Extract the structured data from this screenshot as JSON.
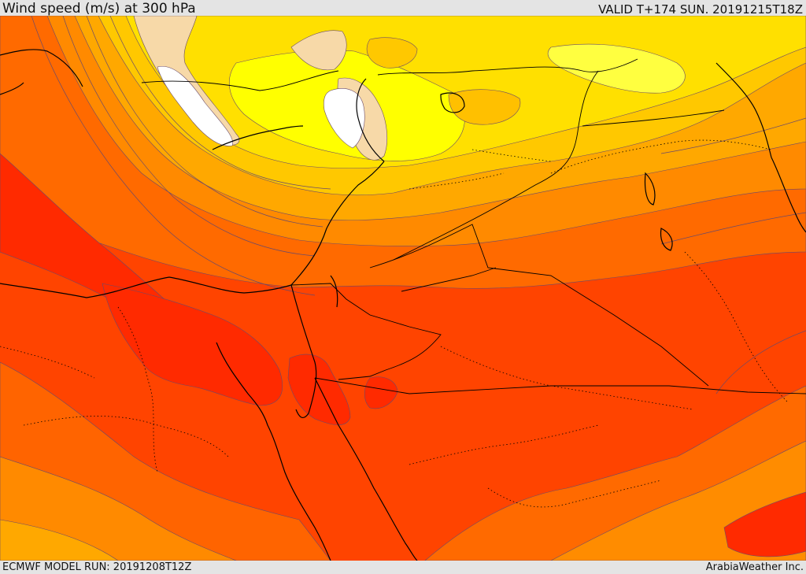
{
  "header": {
    "title": "Wind speed (m/s) at 300 hPa",
    "valid": "VALID T+174 SUN. 20191215T18Z"
  },
  "footer": {
    "model_run": "ECMWF MODEL RUN: 20191208T12Z",
    "credit": "ArabiaWeather Inc."
  },
  "palette": {
    "calm_white": "#ffffff",
    "pale_peach": "#f7d9a8",
    "bright_yellow": "#ffff00",
    "golden_yellow": "#ffe000",
    "amber": "#ffc400",
    "light_orange": "#ffa000",
    "orange": "#ff7a00",
    "dark_orange": "#ff5a00",
    "red_orange": "#ff4000",
    "jet_core_red": "#ff2400",
    "contour_line": "#6a4a6a",
    "border_line": "#000000"
  }
}
